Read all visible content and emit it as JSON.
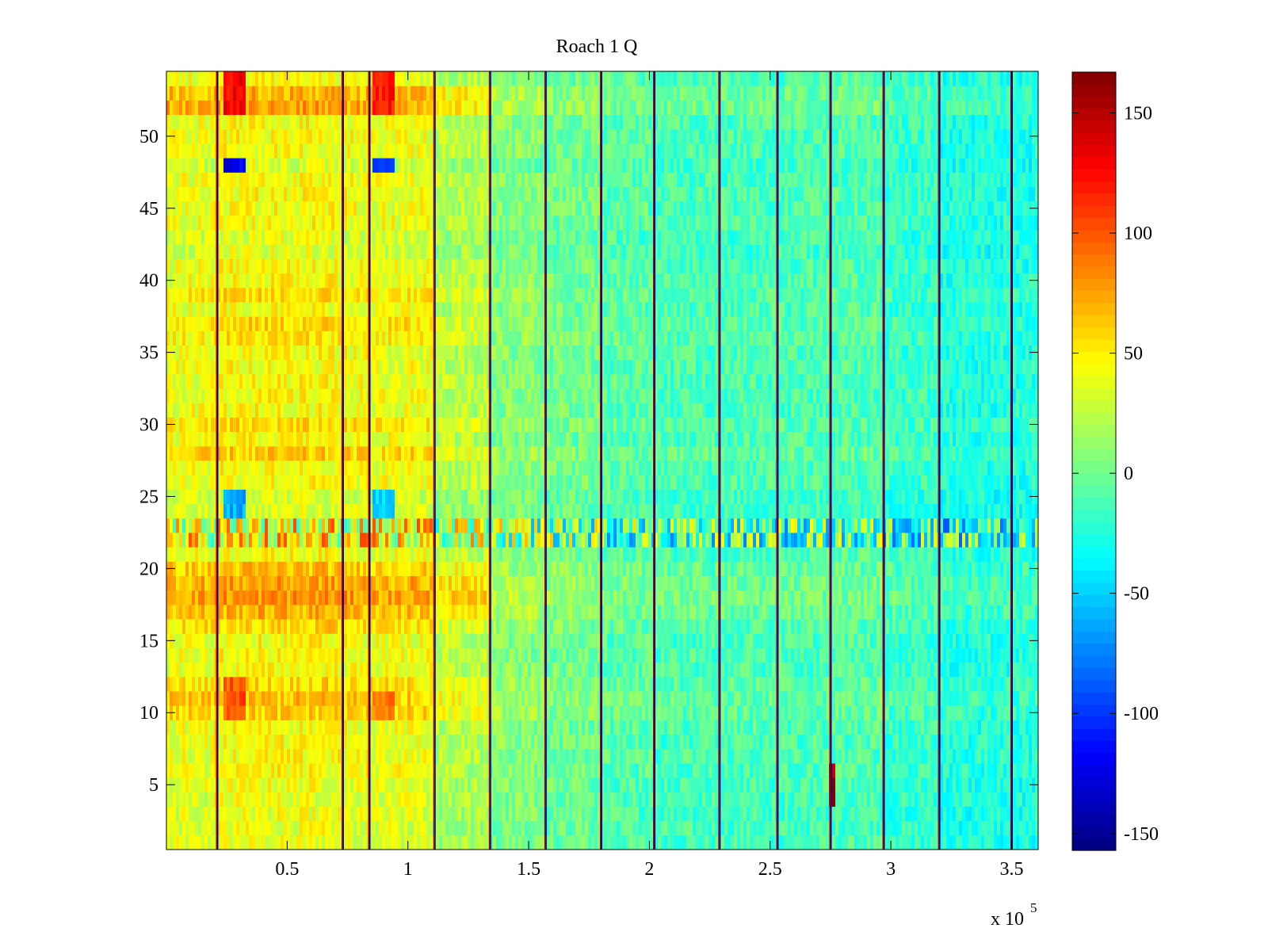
{
  "chart_data": {
    "type": "heatmap",
    "title": "Roach 1 Q",
    "xlabel": "",
    "ylabel": "",
    "xlim": [
      0,
      361000
    ],
    "ylim": [
      0.5,
      54.5
    ],
    "x_ticks": [
      50000,
      100000,
      150000,
      200000,
      250000,
      300000,
      350000
    ],
    "x_tick_labels": [
      "0.5",
      "1",
      "1.5",
      "2",
      "2.5",
      "3",
      "3.5"
    ],
    "x_exponent_label": "x 10",
    "x_exponent_power": "5",
    "y_ticks": [
      5,
      10,
      15,
      20,
      25,
      30,
      35,
      40,
      45,
      50
    ],
    "y_tick_labels": [
      "5",
      "10",
      "15",
      "20",
      "25",
      "30",
      "35",
      "40",
      "45",
      "50"
    ],
    "rows": 54,
    "colorbar": {
      "colormap": "jet",
      "clim": [
        -157,
        167
      ],
      "ticks": [
        -150,
        -100,
        -50,
        0,
        50,
        100,
        150
      ],
      "tick_labels": [
        "-150",
        "-100",
        "-50",
        "0",
        "50",
        "100",
        "150"
      ]
    },
    "column_segments": [
      {
        "x0": 0,
        "x1": 20000,
        "mean": 40
      },
      {
        "x0": 20000,
        "x1": 72000,
        "mean": 45
      },
      {
        "x0": 72000,
        "x1": 84000,
        "mean": 42
      },
      {
        "x0": 84000,
        "x1": 110000,
        "mean": 40
      },
      {
        "x0": 110000,
        "x1": 134000,
        "mean": 22
      },
      {
        "x0": 134000,
        "x1": 157000,
        "mean": 6
      },
      {
        "x0": 157000,
        "x1": 180000,
        "mean": 0
      },
      {
        "x0": 180000,
        "x1": 202000,
        "mean": -8
      },
      {
        "x0": 202000,
        "x1": 229000,
        "mean": -12
      },
      {
        "x0": 229000,
        "x1": 253000,
        "mean": -12
      },
      {
        "x0": 253000,
        "x1": 275000,
        "mean": -12
      },
      {
        "x0": 275000,
        "x1": 297000,
        "mean": -10
      },
      {
        "x0": 297000,
        "x1": 320000,
        "mean": -18
      },
      {
        "x0": 320000,
        "x1": 349000,
        "mean": -25
      },
      {
        "x0": 349000,
        "x1": 361000,
        "mean": -25
      }
    ],
    "separator_lines_x": [
      21000,
      73000,
      84000,
      111000,
      134000,
      157000,
      180000,
      202000,
      229000,
      253000,
      275000,
      297000,
      320000,
      350000
    ],
    "row_offsets": [
      {
        "row": 53,
        "offset": 25
      },
      {
        "row": 52,
        "offset": 30
      },
      {
        "row": 48,
        "offset": -10
      },
      {
        "row": 43,
        "offset": -8
      },
      {
        "row": 42,
        "offset": -8
      },
      {
        "row": 39,
        "offset": 10
      },
      {
        "row": 37,
        "offset": 12
      },
      {
        "row": 36,
        "offset": 8
      },
      {
        "row": 30,
        "offset": 10
      },
      {
        "row": 28,
        "offset": 15
      },
      {
        "row": 25,
        "offset": -10
      },
      {
        "row": 24,
        "offset": -10
      },
      {
        "row": 20,
        "offset": 20
      },
      {
        "row": 19,
        "offset": 30
      },
      {
        "row": 18,
        "offset": 35
      },
      {
        "row": 17,
        "offset": 25
      },
      {
        "row": 16,
        "offset": 12
      },
      {
        "row": 12,
        "offset": 12
      },
      {
        "row": 11,
        "offset": 20
      },
      {
        "row": 10,
        "offset": 15
      },
      {
        "row": 5,
        "offset": -4
      },
      {
        "row": 4,
        "offset": -5
      },
      {
        "row": 3,
        "offset": -6
      },
      {
        "row": 2,
        "offset": -6
      },
      {
        "row": 1,
        "offset": -6
      }
    ],
    "noisy_rows": [
      22,
      23
    ],
    "hotspots": [
      {
        "x0": 23000,
        "x1": 33000,
        "row0": 52,
        "row1": 54,
        "value": 130
      },
      {
        "x0": 85000,
        "x1": 95000,
        "row0": 52,
        "row1": 54,
        "value": 120
      },
      {
        "x0": 23000,
        "x1": 33000,
        "row0": 48,
        "row1": 48,
        "value": -120
      },
      {
        "x0": 85000,
        "x1": 95000,
        "row0": 48,
        "row1": 48,
        "value": -110
      },
      {
        "x0": 23000,
        "x1": 33000,
        "row0": 24,
        "row1": 25,
        "value": -60
      },
      {
        "x0": 85000,
        "x1": 95000,
        "row0": 24,
        "row1": 25,
        "value": -50
      },
      {
        "x0": 23000,
        "x1": 33000,
        "row0": 10,
        "row1": 12,
        "value": 100
      },
      {
        "x0": 85000,
        "x1": 95000,
        "row0": 10,
        "row1": 11,
        "value": 90
      },
      {
        "x0": 275000,
        "x1": 277000,
        "row0": 4,
        "row1": 6,
        "value": 160
      }
    ]
  }
}
